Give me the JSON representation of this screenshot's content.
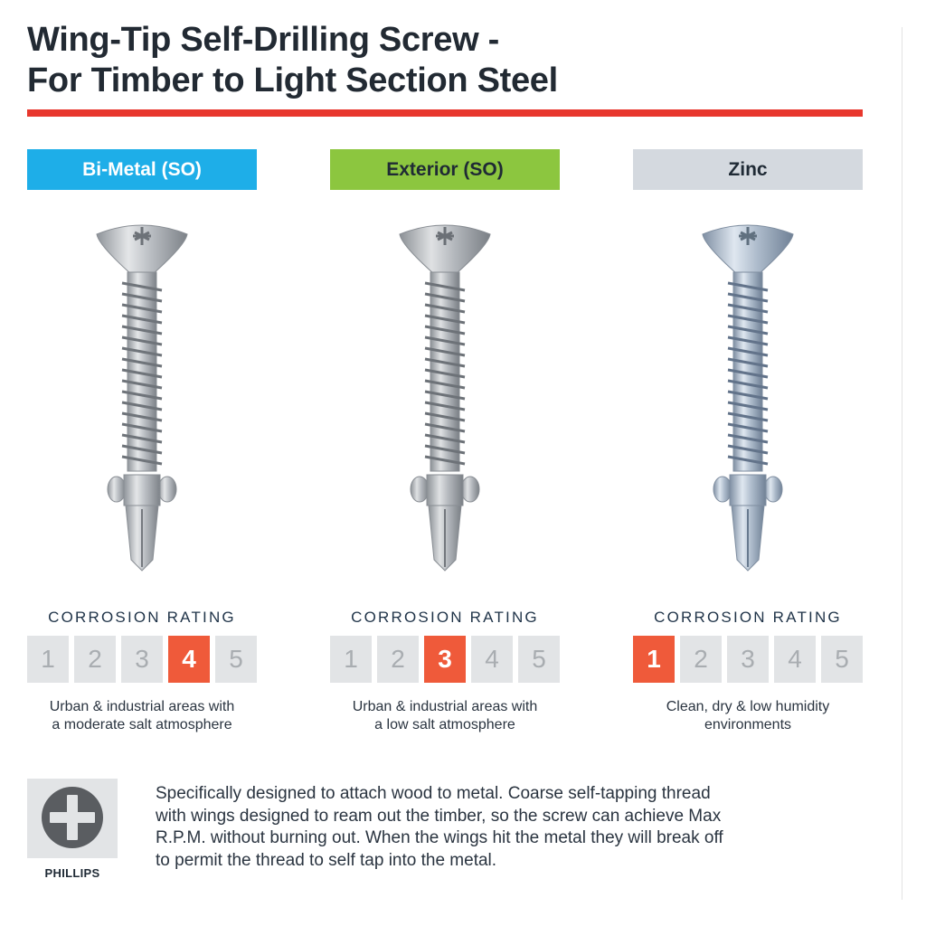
{
  "title": {
    "line1": "Wing-Tip Self-Drilling Screw -",
    "line2": "For Timber to Light Section Steel"
  },
  "colors": {
    "accent_red": "#e8372d",
    "bimetal_blue": "#1eaee8",
    "exterior_green": "#8cc63f",
    "zinc_grey": "#d4d9df",
    "rating_active": "#ef5a3a"
  },
  "columns": [
    {
      "label": "Bi-Metal (SO)",
      "image": "screw-bimetal",
      "rating_title": "CORROSION RATING",
      "rating": 4,
      "scale": [
        "1",
        "2",
        "3",
        "4",
        "5"
      ],
      "desc_line1": "Urban & industrial areas with",
      "desc_line2": "a moderate salt atmosphere"
    },
    {
      "label": "Exterior (SO)",
      "image": "screw-exterior",
      "rating_title": "CORROSION RATING",
      "rating": 3,
      "scale": [
        "1",
        "2",
        "3",
        "4",
        "5"
      ],
      "desc_line1": "Urban & industrial areas with",
      "desc_line2": "a low salt atmosphere"
    },
    {
      "label": "Zinc",
      "image": "screw-zinc",
      "rating_title": "CORROSION RATING",
      "rating": 1,
      "scale": [
        "1",
        "2",
        "3",
        "4",
        "5"
      ],
      "desc_line1": "Clean, dry & low humidity",
      "desc_line2": "environments"
    }
  ],
  "drive": {
    "icon": "phillips-icon",
    "label": "PHILLIPS"
  },
  "description": {
    "line1": "Specifically designed to attach wood to metal. Coarse self-tapping thread",
    "line2": "with wings designed to ream out the timber, so the screw can achieve Max",
    "line3": "R.P.M. without burning out. When the wings hit the metal they will break off",
    "line4": "to permit the thread to self tap into the metal."
  }
}
